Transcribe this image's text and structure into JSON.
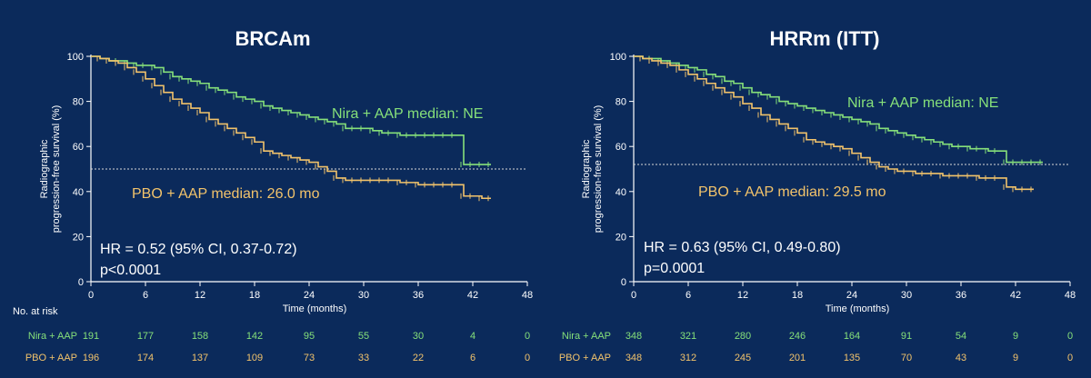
{
  "colors": {
    "background": "#0b2a5b",
    "nira": "#86e07a",
    "pbo": "#f2c36b",
    "axis": "#ffffff",
    "text": "#ffffff",
    "reference": "#d8d8d8"
  },
  "chart_data": [
    {
      "type": "line",
      "title": "BRCAm",
      "xlabel": "Time (months)",
      "ylabel": "Radiographic progression-free survival (%)",
      "ylabel_lines": [
        "Radiographic",
        "progression-free survival (%)"
      ],
      "xlim": [
        0,
        48
      ],
      "ylim": [
        0,
        100
      ],
      "xticks": [
        0,
        6,
        12,
        18,
        24,
        30,
        36,
        42,
        48
      ],
      "yticks": [
        0,
        20,
        40,
        60,
        80,
        100
      ],
      "grid": false,
      "reference_line_y": 50,
      "series": [
        {
          "name": "Nira + AAP",
          "label": "Nira + AAP median: NE",
          "x": [
            0,
            1,
            2,
            3,
            4,
            5,
            6,
            7,
            8,
            9,
            10,
            11,
            12,
            13,
            14,
            15,
            16,
            17,
            18,
            19,
            20,
            21,
            22,
            23,
            24,
            25,
            26,
            27,
            28,
            29,
            30,
            31,
            32,
            33,
            34,
            35,
            36,
            37,
            38,
            39,
            40,
            41,
            42,
            43,
            44
          ],
          "y": [
            100,
            99,
            98,
            98,
            97,
            96,
            96,
            95,
            93,
            91,
            90,
            89,
            88,
            86,
            85,
            84,
            82,
            81,
            80,
            78,
            77,
            76,
            75,
            74,
            73,
            72,
            71,
            70,
            68,
            68,
            68,
            67,
            66,
            66,
            65,
            65,
            65,
            65,
            65,
            65,
            65,
            52,
            52,
            52,
            52
          ]
        },
        {
          "name": "PBO + AAP",
          "label": "PBO + AAP median: 26.0 mo",
          "x": [
            0,
            1,
            2,
            3,
            4,
            5,
            6,
            7,
            8,
            9,
            10,
            11,
            12,
            13,
            14,
            15,
            16,
            17,
            18,
            19,
            20,
            21,
            22,
            23,
            24,
            25,
            26,
            27,
            28,
            29,
            30,
            31,
            32,
            33,
            34,
            35,
            36,
            37,
            38,
            39,
            40,
            41,
            42,
            43,
            44
          ],
          "y": [
            100,
            99,
            98,
            97,
            95,
            93,
            90,
            87,
            84,
            81,
            79,
            77,
            75,
            72,
            70,
            68,
            66,
            64,
            62,
            58,
            57,
            56,
            55,
            54,
            53,
            51,
            49,
            46,
            45,
            45,
            45,
            45,
            45,
            45,
            44,
            44,
            43,
            43,
            43,
            43,
            43,
            38,
            38,
            37,
            37
          ]
        }
      ],
      "annotations": {
        "hr": "HR = 0.52 (95% CI, 0.37-0.72)",
        "p": "p<0.0001"
      },
      "at_risk": {
        "header": "No. at risk",
        "times": [
          0,
          6,
          12,
          18,
          24,
          30,
          36,
          42,
          48
        ],
        "rows": [
          {
            "name": "Nira + AAP",
            "values": [
              "191",
              "177",
              "158",
              "142",
              "95",
              "55",
              "30",
              "4",
              "0"
            ]
          },
          {
            "name": "PBO + AAP",
            "values": [
              "196",
              "174",
              "137",
              "109",
              "73",
              "33",
              "22",
              "6",
              "0"
            ]
          }
        ]
      }
    },
    {
      "type": "line",
      "title": "HRRm (ITT)",
      "xlabel": "Time (months)",
      "ylabel": "Radiographic progression-free survival (%)",
      "ylabel_lines": [
        "Radiographic",
        "progression-free survival (%)"
      ],
      "xlim": [
        0,
        48
      ],
      "ylim": [
        0,
        100
      ],
      "xticks": [
        0,
        6,
        12,
        18,
        24,
        30,
        36,
        42,
        48
      ],
      "yticks": [
        0,
        20,
        40,
        60,
        80,
        100
      ],
      "grid": false,
      "reference_line_y": 52,
      "series": [
        {
          "name": "Nira + AAP",
          "label": "Nira + AAP median: NE",
          "x": [
            0,
            1,
            2,
            3,
            4,
            5,
            6,
            7,
            8,
            9,
            10,
            11,
            12,
            13,
            14,
            15,
            16,
            17,
            18,
            19,
            20,
            21,
            22,
            23,
            24,
            25,
            26,
            27,
            28,
            29,
            30,
            31,
            32,
            33,
            34,
            35,
            36,
            37,
            38,
            39,
            40,
            41,
            42,
            43,
            44,
            45
          ],
          "y": [
            100,
            99,
            99,
            98,
            97,
            96,
            95,
            94,
            92,
            91,
            89,
            88,
            86,
            84,
            83,
            82,
            80,
            79,
            78,
            77,
            76,
            75,
            74,
            73,
            72,
            71,
            70,
            68,
            67,
            66,
            65,
            64,
            63,
            62,
            61,
            60,
            60,
            59,
            59,
            58,
            58,
            53,
            53,
            53,
            53,
            53
          ]
        },
        {
          "name": "PBO + AAP",
          "label": "PBO + AAP median: 29.5 mo",
          "x": [
            0,
            1,
            2,
            3,
            4,
            5,
            6,
            7,
            8,
            9,
            10,
            11,
            12,
            13,
            14,
            15,
            16,
            17,
            18,
            19,
            20,
            21,
            22,
            23,
            24,
            25,
            26,
            27,
            28,
            29,
            30,
            31,
            32,
            33,
            34,
            35,
            36,
            37,
            38,
            39,
            40,
            41,
            42,
            43,
            44
          ],
          "y": [
            100,
            99,
            98,
            97,
            96,
            94,
            92,
            90,
            88,
            86,
            84,
            82,
            79,
            77,
            74,
            72,
            70,
            68,
            66,
            63,
            62,
            61,
            60,
            59,
            57,
            55,
            53,
            51,
            50,
            49,
            49,
            48,
            48,
            48,
            47,
            47,
            47,
            47,
            46,
            46,
            46,
            42,
            41,
            41,
            41
          ]
        }
      ],
      "annotations": {
        "hr": "HR = 0.63 (95% CI, 0.49-0.80)",
        "p": "p=0.0001"
      },
      "at_risk": {
        "header": "No. at risk",
        "times": [
          0,
          6,
          12,
          18,
          24,
          30,
          36,
          42,
          48
        ],
        "rows": [
          {
            "name": "Nira + AAP",
            "values": [
              "348",
              "321",
              "280",
              "246",
              "164",
              "91",
              "54",
              "9",
              "0"
            ]
          },
          {
            "name": "PBO + AAP",
            "values": [
              "348",
              "312",
              "245",
              "201",
              "135",
              "70",
              "43",
              "9",
              "0"
            ]
          }
        ]
      }
    }
  ]
}
